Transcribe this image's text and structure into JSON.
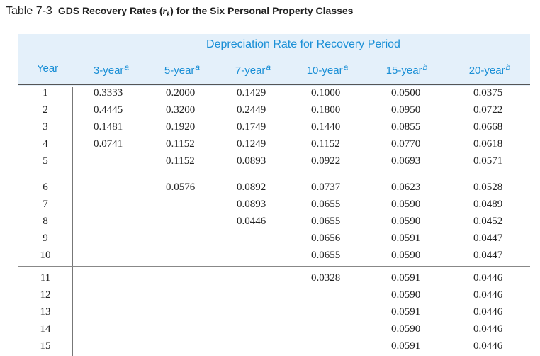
{
  "table": {
    "number": "Table 7-3",
    "title_prefix": "GDS Recovery Rates (",
    "title_symbol": "r",
    "title_subscript": "k",
    "title_suffix": ") for the Six Personal Property Classes",
    "spanning_header": "Depreciation Rate for Recovery Period",
    "year_header": "Year",
    "columns": [
      {
        "label": "3-year",
        "footnote": "a"
      },
      {
        "label": "5-year",
        "footnote": "a"
      },
      {
        "label": "7-year",
        "footnote": "a"
      },
      {
        "label": "10-year",
        "footnote": "a"
      },
      {
        "label": "15-year",
        "footnote": "b"
      },
      {
        "label": "20-year",
        "footnote": "b"
      }
    ],
    "rows": [
      {
        "year": "1",
        "values": [
          "0.3333",
          "0.2000",
          "0.1429",
          "0.1000",
          "0.0500",
          "0.0375"
        ]
      },
      {
        "year": "2",
        "values": [
          "0.4445",
          "0.3200",
          "0.2449",
          "0.1800",
          "0.0950",
          "0.0722"
        ]
      },
      {
        "year": "3",
        "values": [
          "0.1481",
          "0.1920",
          "0.1749",
          "0.1440",
          "0.0855",
          "0.0668"
        ]
      },
      {
        "year": "4",
        "values": [
          "0.0741",
          "0.1152",
          "0.1249",
          "0.1152",
          "0.0770",
          "0.0618"
        ]
      },
      {
        "year": "5",
        "values": [
          "",
          "0.1152",
          "0.0893",
          "0.0922",
          "0.0693",
          "0.0571"
        ]
      },
      {
        "year": "6",
        "values": [
          "",
          "0.0576",
          "0.0892",
          "0.0737",
          "0.0623",
          "0.0528"
        ]
      },
      {
        "year": "7",
        "values": [
          "",
          "",
          "0.0893",
          "0.0655",
          "0.0590",
          "0.0489"
        ]
      },
      {
        "year": "8",
        "values": [
          "",
          "",
          "0.0446",
          "0.0655",
          "0.0590",
          "0.0452"
        ]
      },
      {
        "year": "9",
        "values": [
          "",
          "",
          "",
          "0.0656",
          "0.0591",
          "0.0447"
        ]
      },
      {
        "year": "10",
        "values": [
          "",
          "",
          "",
          "0.0655",
          "0.0590",
          "0.0447"
        ]
      },
      {
        "year": "11",
        "values": [
          "",
          "",
          "",
          "0.0328",
          "0.0591",
          "0.0446"
        ]
      },
      {
        "year": "12",
        "values": [
          "",
          "",
          "",
          "",
          "0.0590",
          "0.0446"
        ]
      },
      {
        "year": "13",
        "values": [
          "",
          "",
          "",
          "",
          "0.0591",
          "0.0446"
        ]
      },
      {
        "year": "14",
        "values": [
          "",
          "",
          "",
          "",
          "0.0590",
          "0.0446"
        ]
      },
      {
        "year": "15",
        "values": [
          "",
          "",
          "",
          "",
          "0.0591",
          "0.0446"
        ]
      }
    ]
  }
}
